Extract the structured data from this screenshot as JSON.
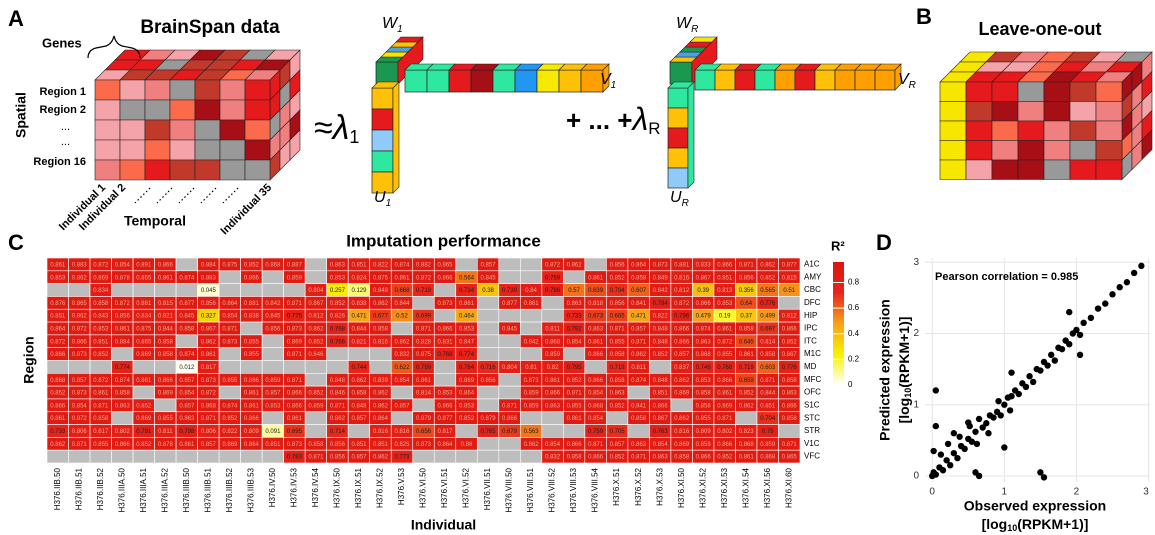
{
  "panels": {
    "a": "A",
    "b": "B",
    "c": "C",
    "d": "D"
  },
  "brainspan": {
    "title": "BrainSpan data",
    "genes": "Genes",
    "spatial": "Spatial",
    "regions": [
      "Region 1",
      "Region 2",
      "...",
      "...",
      "Region 16"
    ],
    "individuals": [
      "Individual 1",
      "Individual 2",
      "Individual 35"
    ],
    "temporal": "Temporal"
  },
  "decomposition": {
    "approx": "≈",
    "lambda1": {
      "main": "λ",
      "sub": "1"
    },
    "plus_dots": "+ ... +",
    "lambdaR": {
      "main": "λ",
      "sub": "R"
    },
    "w1": {
      "main": "W",
      "sub": "1"
    },
    "v1": {
      "main": "V",
      "sub": "1"
    },
    "u1": {
      "main": "U",
      "sub": "1"
    },
    "wR": {
      "main": "W",
      "sub": "R"
    },
    "vR": {
      "main": "V",
      "sub": "R"
    },
    "uR": {
      "main": "U",
      "sub": "R"
    }
  },
  "leave_one_out": {
    "title": "Leave-one-out"
  },
  "chart_data": [
    {
      "type": "heatmap",
      "title": "Imputation performance",
      "x_label": "Individual",
      "y_label": "Region",
      "colorbar_label": "R²",
      "clim": [
        0,
        0.96
      ],
      "cticks": [
        0,
        0.2,
        0.4,
        0.6,
        0.8
      ],
      "colormap": [
        "#ffffff",
        "#f7f200",
        "#f6a21a",
        "#e8251b",
        "#d9150f"
      ],
      "na_color": "#bdbdbd",
      "categories": [
        "H376.IIB.50",
        "H376.IIB.51",
        "H376.IIB.52",
        "H376.IIIA.50",
        "H376.IIIA.51",
        "H376.IIIA.52",
        "H376.IIIB.50",
        "H376.IIIB.51",
        "H376.IIIB.52",
        "H376.IIIB.53",
        "H376.IV.50",
        "H376.IV.53",
        "H376.IV.54",
        "H376.IX.50",
        "H376.IX.51",
        "H376.IX.52",
        "H376.V.53",
        "H376.VI.50",
        "H376.VI.51",
        "H376.VI.52",
        "H376.VII.51",
        "H376.VIII.50",
        "H376.VIII.51",
        "H376.VIII.52",
        "H376.VIII.53",
        "H376.VIII.54",
        "H376.X.51",
        "H376.X.52",
        "H376.X.53",
        "H376.XI.50",
        "H376.XI.52",
        "H376.XI.53",
        "H376.XI.54",
        "H376.XI.56",
        "H376.XI.60"
      ],
      "rows": [
        "A1C",
        "AMY",
        "CBC",
        "DFC",
        "HIP",
        "IPC",
        "ITC",
        "M1C",
        "MD",
        "MFC",
        "OFC",
        "S1C",
        "STC",
        "STR",
        "V1C",
        "VFC"
      ],
      "values": [
        [
          0.861,
          0.883,
          0.872,
          0.854,
          0.891,
          0.866,
          null,
          0.884,
          0.875,
          0.852,
          0.868,
          0.887,
          null,
          0.863,
          0.851,
          0.822,
          0.874,
          0.882,
          0.865,
          null,
          0.857,
          null,
          null,
          0.872,
          0.862,
          null,
          0.856,
          0.864,
          0.873,
          0.881,
          0.833,
          0.866,
          0.871,
          0.862,
          0.877
        ],
        [
          0.853,
          0.862,
          0.869,
          0.878,
          0.855,
          0.861,
          0.874,
          0.883,
          null,
          0.866,
          null,
          0.859,
          null,
          0.853,
          0.824,
          0.875,
          0.861,
          0.872,
          0.866,
          0.564,
          0.845,
          null,
          null,
          0.759,
          null,
          0.861,
          0.852,
          0.858,
          0.849,
          0.816,
          0.867,
          0.851,
          0.856,
          0.852,
          0.815
        ],
        [
          null,
          null,
          0.834,
          null,
          null,
          null,
          null,
          0.045,
          null,
          null,
          null,
          null,
          0.804,
          0.257,
          0.129,
          0.848,
          0.668,
          0.719,
          null,
          0.734,
          0.38,
          0.739,
          0.84,
          0.786,
          0.57,
          0.639,
          0.704,
          0.607,
          0.842,
          0.812,
          0.39,
          0.813,
          0.356,
          0.565,
          0.51
        ],
        [
          0.876,
          0.865,
          0.858,
          0.872,
          0.861,
          0.815,
          0.877,
          0.856,
          0.864,
          0.881,
          0.842,
          0.871,
          0.867,
          0.852,
          0.838,
          0.862,
          0.844,
          null,
          0.873,
          0.861,
          null,
          0.877,
          0.861,
          null,
          0.863,
          0.818,
          0.856,
          0.841,
          0.794,
          0.872,
          0.866,
          0.853,
          0.64,
          0.776,
          null
        ],
        [
          0.851,
          0.862,
          0.843,
          0.856,
          0.834,
          0.821,
          0.845,
          0.327,
          0.854,
          0.838,
          0.845,
          0.775,
          0.812,
          0.826,
          0.471,
          0.677,
          0.52,
          0.699,
          null,
          0.464,
          null,
          null,
          null,
          null,
          0.733,
          0.673,
          0.665,
          0.471,
          0.822,
          0.796,
          0.479,
          0.19,
          0.37,
          0.499,
          0.812
        ],
        [
          0.864,
          0.872,
          0.853,
          0.861,
          0.875,
          0.844,
          0.858,
          0.867,
          0.871,
          null,
          0.856,
          0.873,
          0.862,
          0.768,
          0.844,
          0.858,
          null,
          0.871,
          0.866,
          0.853,
          null,
          0.845,
          null,
          0.811,
          0.792,
          0.863,
          0.871,
          0.857,
          0.848,
          0.866,
          0.874,
          0.861,
          0.858,
          0.697,
          0.866
        ],
        [
          0.872,
          0.866,
          0.851,
          0.884,
          0.865,
          0.858,
          null,
          0.862,
          0.873,
          0.855,
          null,
          0.869,
          0.852,
          0.766,
          0.821,
          0.816,
          0.862,
          0.828,
          0.831,
          0.847,
          null,
          null,
          0.842,
          0.868,
          0.854,
          0.861,
          0.855,
          0.871,
          0.848,
          0.866,
          0.863,
          0.872,
          0.645,
          0.814,
          0.852
        ],
        [
          0.866,
          0.873,
          0.852,
          null,
          0.869,
          0.858,
          0.874,
          0.861,
          null,
          0.855,
          null,
          0.871,
          0.846,
          null,
          null,
          null,
          0.832,
          0.875,
          0.768,
          0.774,
          null,
          null,
          null,
          0.859,
          null,
          0.866,
          0.858,
          0.862,
          0.852,
          0.857,
          0.868,
          0.855,
          0.861,
          0.858,
          0.867
        ],
        [
          null,
          null,
          null,
          0.774,
          null,
          null,
          0.012,
          0.817,
          null,
          null,
          null,
          null,
          null,
          null,
          0.744,
          null,
          0.622,
          0.799,
          null,
          0.764,
          0.716,
          0.804,
          0.81,
          0.82,
          0.795,
          null,
          0.719,
          0.811,
          null,
          0.837,
          0.746,
          0.768,
          0.719,
          0.603,
          0.776
        ],
        [
          0.868,
          0.857,
          0.872,
          0.874,
          0.861,
          0.866,
          0.857,
          0.873,
          0.855,
          0.866,
          0.859,
          0.871,
          null,
          0.848,
          0.862,
          0.839,
          0.854,
          0.861,
          null,
          0.869,
          0.856,
          null,
          0.873,
          0.861,
          0.852,
          0.866,
          0.858,
          0.874,
          0.848,
          0.862,
          0.853,
          0.866,
          0.659,
          0.871,
          0.858
        ],
        [
          0.852,
          0.873,
          0.861,
          0.858,
          null,
          0.869,
          0.854,
          0.872,
          null,
          0.861,
          0.857,
          0.866,
          0.852,
          0.846,
          0.858,
          0.862,
          null,
          0.814,
          0.853,
          0.864,
          null,
          null,
          0.859,
          0.866,
          0.871,
          0.854,
          0.863,
          null,
          0.851,
          0.869,
          0.858,
          0.861,
          0.852,
          0.844,
          0.863
        ],
        [
          0.866,
          0.854,
          0.871,
          0.863,
          0.852,
          null,
          0.857,
          0.868,
          0.874,
          0.861,
          0.853,
          0.866,
          0.859,
          0.871,
          0.848,
          0.862,
          0.857,
          null,
          0.866,
          0.853,
          null,
          0.871,
          0.859,
          0.863,
          0.855,
          0.868,
          0.852,
          0.841,
          0.866,
          null,
          0.858,
          0.869,
          0.862,
          0.851,
          0.866
        ],
        [
          0.861,
          0.872,
          0.858,
          null,
          0.869,
          0.855,
          0.863,
          0.871,
          0.852,
          0.866,
          null,
          0.861,
          null,
          0.862,
          0.857,
          0.864,
          null,
          0.879,
          0.877,
          0.852,
          0.879,
          0.866,
          null,
          null,
          0.861,
          0.854,
          null,
          0.858,
          0.867,
          0.862,
          0.855,
          0.871,
          null,
          0.704,
          0.858
        ],
        [
          0.733,
          0.806,
          0.817,
          0.802,
          0.791,
          0.811,
          0.798,
          0.806,
          0.822,
          0.809,
          0.091,
          0.695,
          null,
          0.714,
          null,
          0.816,
          0.816,
          0.656,
          0.817,
          null,
          0.765,
          0.679,
          0.563,
          null,
          null,
          0.759,
          0.705,
          null,
          0.763,
          0.816,
          0.809,
          0.802,
          0.823,
          0.79,
          null
        ],
        [
          0.862,
          0.871,
          0.855,
          0.866,
          0.852,
          0.878,
          0.861,
          0.857,
          0.869,
          0.864,
          0.851,
          0.873,
          0.858,
          0.856,
          0.851,
          0.851,
          0.825,
          0.873,
          0.864,
          0.86,
          null,
          null,
          0.862,
          0.854,
          0.866,
          0.871,
          0.857,
          0.863,
          0.854,
          0.869,
          0.858,
          0.866,
          0.868,
          0.859,
          0.871
        ],
        [
          null,
          null,
          null,
          null,
          null,
          null,
          null,
          null,
          null,
          null,
          null,
          0.783,
          0.871,
          0.856,
          0.857,
          0.862,
          0.773,
          null,
          null,
          null,
          null,
          null,
          null,
          0.832,
          0.858,
          0.866,
          0.852,
          0.871,
          0.863,
          0.858,
          0.866,
          0.852,
          0.861,
          0.868,
          0.865
        ]
      ]
    },
    {
      "type": "scatter",
      "annotation": "Pearson correlation = 0.985",
      "x_label": "Observed expression",
      "x_unit": {
        "pre": "[log",
        "sub": "10",
        "post": "(RPKM+1)]"
      },
      "y_label": "Predicted expression",
      "y_unit": {
        "pre": "[log",
        "sub": "10",
        "post": "(RPKM+1)]"
      },
      "xlim": [
        -0.1,
        3.02
      ],
      "ylim": [
        -0.085,
        3.06
      ],
      "xticks": [
        0,
        1,
        2,
        3
      ],
      "yticks": [
        0,
        1,
        2,
        3
      ],
      "grid": true,
      "color": "#000000",
      "x": [
        0,
        0.02,
        0.05,
        0.1,
        0.12,
        0.15,
        0.2,
        0.22,
        0.25,
        0.3,
        0.35,
        0.38,
        0.4,
        0.45,
        0.5,
        0.52,
        0.55,
        0.6,
        0.62,
        0.65,
        0.7,
        0.75,
        0.78,
        0.8,
        0.85,
        0.9,
        0.92,
        0.95,
        1.0,
        1.05,
        1.08,
        1.1,
        1.15,
        1.2,
        1.25,
        1.3,
        1.35,
        1.4,
        1.45,
        1.5,
        1.55,
        1.6,
        1.65,
        1.7,
        1.75,
        1.8,
        1.85,
        1.9,
        1.95,
        2.0,
        2.05,
        2.1,
        2.2,
        2.3,
        2.4,
        2.5,
        2.6,
        2.7,
        2.8,
        2.9,
        0.05,
        0.05,
        0.5,
        0.3,
        0.02,
        0.6,
        0.65,
        1.5,
        1.55,
        1.0,
        1.1,
        1.9,
        2.05
      ],
      "values": [
        0,
        0.05,
        0.02,
        0.12,
        0.3,
        0.08,
        0.22,
        0.45,
        0.15,
        0.32,
        0.25,
        0.55,
        0.42,
        0.38,
        0.52,
        0.7,
        0.48,
        0.62,
        0.45,
        0.8,
        0.68,
        0.74,
        0.6,
        0.85,
        0.82,
        0.9,
        1.05,
        0.85,
        1.0,
        1.1,
        0.92,
        1.12,
        1.2,
        1.15,
        1.3,
        1.25,
        1.4,
        1.32,
        1.5,
        1.48,
        1.6,
        1.55,
        1.7,
        1.62,
        1.8,
        1.78,
        1.9,
        1.85,
        2.0,
        2.05,
        1.98,
        2.15,
        2.22,
        2.35,
        2.42,
        2.55,
        2.65,
        2.72,
        2.85,
        2.95,
        1.2,
        0.7,
        0.75,
        0.6,
        0.35,
        0.05,
        0,
        0.05,
        -0.02,
        0.4,
        1.45,
        2.3,
        1.7
      ]
    }
  ]
}
